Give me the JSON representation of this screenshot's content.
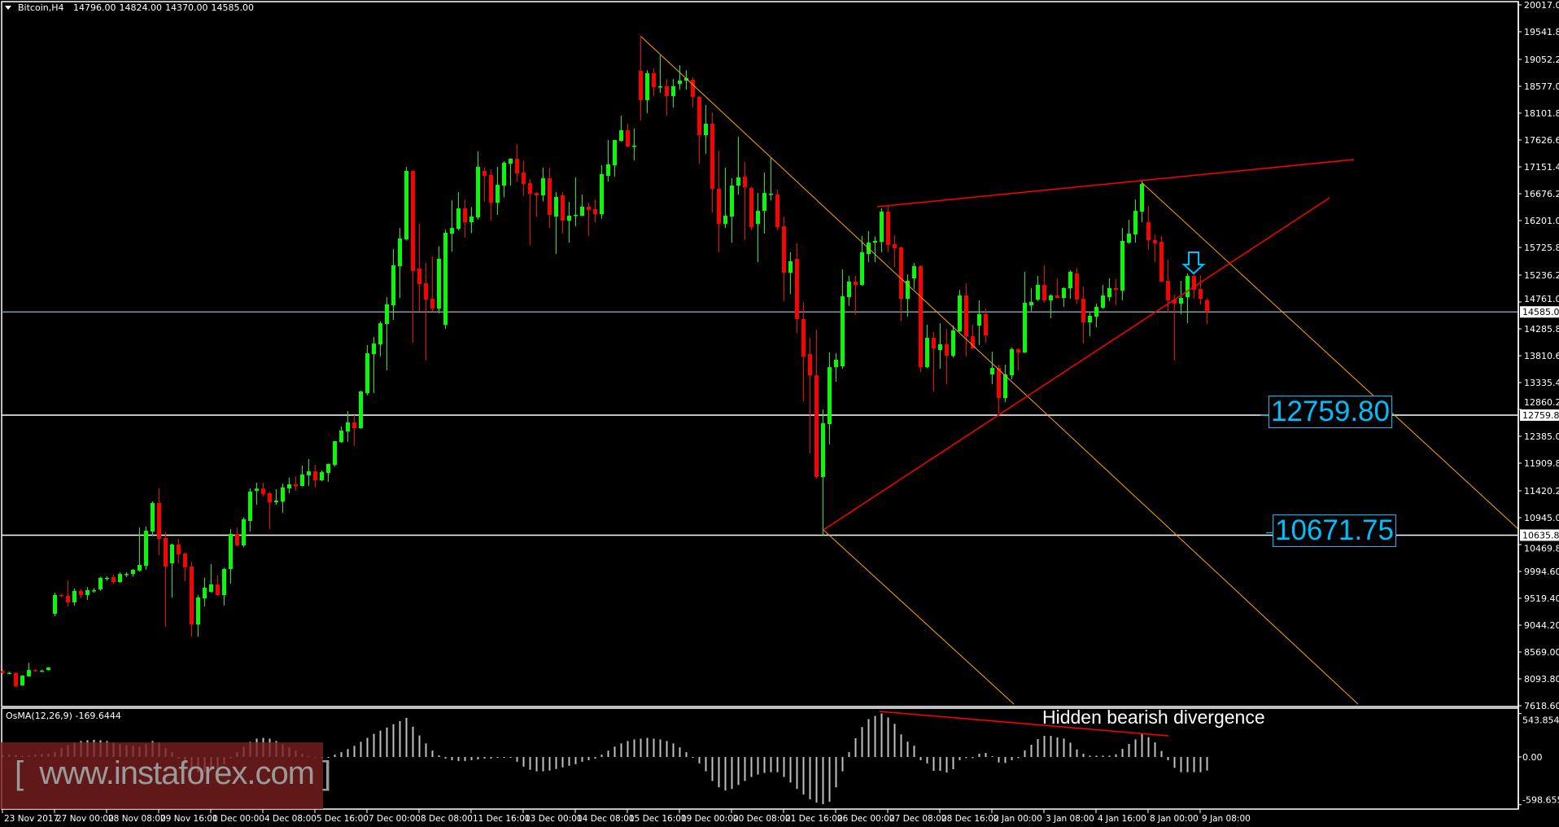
{
  "header": {
    "symbol": "Bitcoin,H4",
    "open": "14796.00",
    "high": "14824.00",
    "low": "14370.00",
    "close": "14585.00"
  },
  "indicator": {
    "label": "OsMA(12,26,9) -169.6444",
    "axis_labels": [
      "543.8546",
      "0.00",
      "-598.6558"
    ],
    "axis_values": [
      543.8546,
      0,
      -598.6558
    ]
  },
  "annotations": {
    "level_1": "12759.80",
    "level_2": "10671.75",
    "divergence": "Hidden bearish divergence",
    "arrow_icon": "down-arrow-icon"
  },
  "watermark": "[  www.instaforex.com ]",
  "colors": {
    "bull": "#00ff00",
    "bear": "#ff0000",
    "trend_orange": "#ffa500",
    "trend_red": "#ff0000",
    "label": "#00bfff",
    "background": "#000000"
  },
  "chart_data": {
    "type": "candlestick",
    "title": "Bitcoin,H4",
    "ylim": [
      7618.6,
      20017.0
    ],
    "y_ticks": [
      "20017.00",
      "19541.80",
      "19052.20",
      "18577.00",
      "18101.80",
      "17626.60",
      "17151.40",
      "16676.20",
      "16201.00",
      "15725.80",
      "15236.20",
      "14761.00",
      "14285.80",
      "13810.60",
      "13335.40",
      "12860.20",
      "12385.00",
      "11909.80",
      "11420.20",
      "10945.00",
      "10469.80",
      "9994.60",
      "9519.40",
      "9044.20",
      "8569.00",
      "8093.80",
      "7618.60"
    ],
    "price_markers": [
      {
        "label": "14585.00",
        "value": 14585.0,
        "color": "#8a96a3"
      },
      {
        "label": "12759.80",
        "value": 12759.8,
        "color": "#ffffff"
      },
      {
        "label": "10635.86",
        "value": 10635.86,
        "color": "#ffffff"
      }
    ],
    "x_labels": [
      "23 Nov 2017",
      "27 Nov 00:00",
      "28 Nov 08:00",
      "29 Nov 16:00",
      "1 Dec 00:00",
      "4 Dec 08:00",
      "5 Dec 16:00",
      "7 Dec 00:00",
      "8 Dec 08:00",
      "11 Dec 16:00",
      "13 Dec 00:00",
      "14 Dec 08:00",
      "15 Dec 16:00",
      "19 Dec 00:00",
      "20 Dec 08:00",
      "21 Dec 16:00",
      "26 Dec 00:00",
      "27 Dec 08:00",
      "28 Dec 16:00",
      "2 Jan 00:00",
      "3 Jan 08:00",
      "4 Jan 16:00",
      "8 Jan 00:00",
      "9 Jan 08:00"
    ],
    "x_label_every": 8,
    "ohlc_order": [
      "open",
      "high",
      "low",
      "close"
    ],
    "candles": [
      [
        8230,
        8250,
        8180,
        8200
      ],
      [
        8200,
        8220,
        8180,
        8200
      ],
      [
        8200,
        8210,
        7940,
        7960
      ],
      [
        7980,
        8160,
        7970,
        8150
      ],
      [
        8140,
        8380,
        8130,
        8250
      ],
      [
        8250,
        8260,
        8220,
        8235
      ],
      [
        8235,
        8260,
        8220,
        8240
      ],
      [
        8250,
        8300,
        8240,
        8295
      ],
      [
        9246,
        9620,
        9200,
        9577
      ],
      [
        9577,
        9600,
        9540,
        9563
      ],
      [
        9563,
        9836,
        9375,
        9447
      ],
      [
        9447,
        9690,
        9390,
        9650
      ],
      [
        9650,
        9680,
        9520,
        9577
      ],
      [
        9577,
        9720,
        9490,
        9663
      ],
      [
        9663,
        9700,
        9620,
        9663
      ],
      [
        9678,
        9900,
        9650,
        9880
      ],
      [
        9880,
        9910,
        9830,
        9880
      ],
      [
        9894,
        9940,
        9770,
        9806
      ],
      [
        9806,
        9980,
        9790,
        9950
      ],
      [
        9950,
        9980,
        9900,
        9950
      ],
      [
        9950,
        10040,
        9900,
        10023
      ],
      [
        10010,
        10772,
        9990,
        10110
      ],
      [
        10096,
        10787,
        10023,
        10715
      ],
      [
        10700,
        11233,
        10628,
        11204
      ],
      [
        11204,
        11463,
        10282,
        10571
      ],
      [
        10585,
        10700,
        9015,
        10081
      ],
      [
        10139,
        10485,
        9534,
        10470
      ],
      [
        10470,
        10571,
        10139,
        10297
      ],
      [
        10311,
        10330,
        9822,
        10067
      ],
      [
        10081,
        10167,
        8843,
        9058
      ],
      [
        9058,
        9580,
        8843,
        9534
      ],
      [
        9519,
        9880,
        9375,
        9706
      ],
      [
        9634,
        10124,
        9620,
        9764
      ],
      [
        9764,
        9922,
        9560,
        9577
      ],
      [
        9577,
        10060,
        9390,
        10037
      ],
      [
        10037,
        10744,
        9779,
        10657
      ],
      [
        10657,
        10772,
        10440,
        10455
      ],
      [
        10455,
        10950,
        10420,
        10916
      ],
      [
        10887,
        11463,
        10700,
        11405
      ],
      [
        11420,
        11564,
        11175,
        11460
      ],
      [
        11460,
        11564,
        11320,
        11360
      ],
      [
        11377,
        11400,
        10743,
        11218
      ],
      [
        11218,
        11449,
        11175,
        11247
      ],
      [
        11230,
        11550,
        11031,
        11480
      ],
      [
        11463,
        11650,
        11377,
        11535
      ],
      [
        11535,
        11680,
        11420,
        11500
      ],
      [
        11506,
        11866,
        11500,
        11708
      ],
      [
        11694,
        11982,
        11506,
        11766
      ],
      [
        11766,
        11880,
        11478,
        11607
      ],
      [
        11607,
        11780,
        11590,
        11750
      ],
      [
        11737,
        11900,
        11578,
        11895
      ],
      [
        11880,
        12300,
        11850,
        12298
      ],
      [
        12284,
        12560,
        12270,
        12486
      ],
      [
        12470,
        12831,
        12290,
        12630
      ],
      [
        12630,
        12760,
        12212,
        12529
      ],
      [
        12529,
        13190,
        12520,
        13177
      ],
      [
        13148,
        13998,
        13110,
        13853
      ],
      [
        13839,
        14142,
        13150,
        14026
      ],
      [
        14012,
        14420,
        13796,
        14386
      ],
      [
        14372,
        14847,
        13551,
        14718
      ],
      [
        14703,
        15697,
        14444,
        15409
      ],
      [
        15394,
        16071,
        14833,
        15884
      ],
      [
        15870,
        17151,
        15850,
        17079
      ],
      [
        17079,
        17100,
        14041,
        15308
      ],
      [
        15351,
        16143,
        14600,
        15078
      ],
      [
        15092,
        15452,
        13724,
        14804
      ],
      [
        14818,
        15567,
        14600,
        14646
      ],
      [
        14646,
        15750,
        14560,
        15524
      ],
      [
        14358,
        16040,
        14286,
        15985
      ],
      [
        15970,
        16560,
        15653,
        16071
      ],
      [
        16057,
        16705,
        16030,
        16416
      ],
      [
        16416,
        16575,
        15898,
        16172
      ],
      [
        16172,
        16440,
        15980,
        16272
      ],
      [
        16258,
        17425,
        16220,
        17151
      ],
      [
        17079,
        17151,
        16532,
        16993
      ],
      [
        17007,
        17110,
        16200,
        16517
      ],
      [
        16517,
        17151,
        16300,
        16834
      ],
      [
        16820,
        17252,
        16610,
        17223
      ],
      [
        17209,
        17300,
        16820,
        17295
      ],
      [
        17295,
        17554,
        16890,
        17036
      ],
      [
        17050,
        17266,
        16634,
        16849
      ],
      [
        16863,
        16935,
        15769,
        16676
      ],
      [
        16690,
        16700,
        16260,
        16647
      ],
      [
        16647,
        17137,
        16540,
        16950
      ],
      [
        16950,
        17137,
        16070,
        16302
      ],
      [
        16273,
        16705,
        15610,
        16618
      ],
      [
        16647,
        16705,
        15970,
        16200
      ],
      [
        16200,
        16532,
        15812,
        16287
      ],
      [
        16287,
        16964,
        16100,
        16302
      ],
      [
        16287,
        16662,
        16280,
        16446
      ],
      [
        16446,
        16518,
        15927,
        16388
      ],
      [
        16403,
        16575,
        16170,
        16316
      ],
      [
        16316,
        17180,
        16230,
        17022
      ],
      [
        16993,
        17626,
        16892,
        17194
      ],
      [
        17180,
        17626,
        16978,
        17626
      ],
      [
        17612,
        18058,
        17600,
        17799
      ],
      [
        17799,
        17914,
        17497,
        17511
      ],
      [
        17525,
        17828,
        17266,
        17525
      ],
      [
        18850,
        19469,
        17972,
        18332
      ],
      [
        18332,
        18864,
        18100,
        18807
      ],
      [
        18807,
        18893,
        18400,
        18562
      ],
      [
        18577,
        19124,
        18462,
        18577
      ],
      [
        18577,
        18706,
        18059,
        18404
      ],
      [
        18404,
        18706,
        18202,
        18577
      ],
      [
        18620,
        18950,
        18520,
        18677
      ],
      [
        18677,
        18864,
        18520,
        18720
      ],
      [
        18692,
        18735,
        18202,
        18390
      ],
      [
        18390,
        18400,
        17209,
        17713
      ],
      [
        17713,
        18246,
        17382,
        17914
      ],
      [
        17914,
        18116,
        16345,
        16762
      ],
      [
        16762,
        17440,
        15640,
        16143
      ],
      [
        16143,
        17137,
        16070,
        16287
      ],
      [
        16273,
        16950,
        15812,
        16820
      ],
      [
        16820,
        17684,
        16660,
        16964
      ],
      [
        16978,
        17238,
        15855,
        16791
      ],
      [
        16777,
        16800,
        16028,
        16085
      ],
      [
        16143,
        16690,
        15466,
        16374
      ],
      [
        16374,
        17050,
        15970,
        16690
      ],
      [
        16676,
        17324,
        16560,
        16676
      ],
      [
        16661,
        16748,
        16028,
        16085
      ],
      [
        16100,
        16273,
        14775,
        15279
      ],
      [
        15279,
        15639,
        14904,
        15481
      ],
      [
        15524,
        15797,
        14213,
        14459
      ],
      [
        14459,
        14760,
        13004,
        13796
      ],
      [
        13839,
        14127,
        12082,
        13464
      ],
      [
        13464,
        14271,
        11640,
        11665
      ],
      [
        11665,
        12860,
        10636,
        12615
      ],
      [
        12601,
        13868,
        12240,
        13608
      ],
      [
        13608,
        13854,
        13350,
        13738
      ],
      [
        13623,
        15337,
        13580,
        14861
      ],
      [
        14847,
        15222,
        14690,
        15121
      ],
      [
        15121,
        15222,
        14530,
        15063
      ],
      [
        15063,
        15927,
        15050,
        15639
      ],
      [
        15610,
        16014,
        15466,
        15812
      ],
      [
        15812,
        15920,
        15466,
        15841
      ],
      [
        15826,
        16417,
        15640,
        16359
      ],
      [
        16359,
        16460,
        15640,
        15769
      ],
      [
        15783,
        15941,
        15380,
        15711
      ],
      [
        15725,
        15740,
        14416,
        14818
      ],
      [
        14818,
        15250,
        14502,
        15135
      ],
      [
        15179,
        15452,
        14990,
        15394
      ],
      [
        15394,
        15410,
        13522,
        13609
      ],
      [
        13609,
        14357,
        13594,
        14127
      ],
      [
        14127,
        14228,
        13177,
        13940
      ],
      [
        13911,
        14386,
        13580,
        14012
      ],
      [
        14012,
        14286,
        13306,
        13810
      ],
      [
        13810,
        14343,
        13781,
        14257
      ],
      [
        14242,
        14976,
        14230,
        14876
      ],
      [
        14876,
        15092,
        13796,
        14156
      ],
      [
        14156,
        14357,
        13940,
        13940
      ],
      [
        14343,
        14790,
        14000,
        14545
      ],
      [
        14545,
        14645,
        14040,
        14170
      ],
      [
        13479,
        13882,
        13306,
        13594
      ],
      [
        13594,
        13652,
        12788,
        13062
      ],
      [
        13062,
        13652,
        12990,
        13479
      ],
      [
        13465,
        13954,
        13393,
        13925
      ],
      [
        13925,
        13940,
        13551,
        13868
      ],
      [
        13868,
        15294,
        13860,
        14746
      ],
      [
        14703,
        15006,
        14600,
        14761
      ],
      [
        14804,
        15222,
        14774,
        15063
      ],
      [
        15063,
        15409,
        14746,
        14790
      ],
      [
        14790,
        14900,
        14473,
        14876
      ],
      [
        14876,
        15178,
        14830,
        14833
      ],
      [
        14833,
        15020,
        14674,
        15006
      ],
      [
        15006,
        15322,
        14818,
        15293
      ],
      [
        15265,
        15366,
        14732,
        14804
      ],
      [
        14818,
        15034,
        14026,
        14401
      ],
      [
        14401,
        14588,
        14156,
        14516
      ],
      [
        14502,
        14732,
        14314,
        14675
      ],
      [
        14660,
        15063,
        14640,
        14876
      ],
      [
        14847,
        15178,
        14775,
        15006
      ],
      [
        15006,
        15164,
        14703,
        14977
      ],
      [
        14962,
        16071,
        14790,
        15841
      ],
      [
        15812,
        16215,
        15790,
        15970
      ],
      [
        15956,
        16575,
        15812,
        16374
      ],
      [
        16359,
        16921,
        16172,
        16849
      ],
      [
        16172,
        16460,
        15682,
        15855
      ],
      [
        15855,
        15957,
        15466,
        15797
      ],
      [
        15826,
        15927,
        15120,
        15120
      ],
      [
        15135,
        15509,
        14573,
        14790
      ],
      [
        14804,
        14890,
        13724,
        14732
      ],
      [
        14732,
        15135,
        14545,
        14833
      ],
      [
        14847,
        15265,
        14386,
        15221
      ],
      [
        15221,
        15279,
        14818,
        14977
      ],
      [
        14991,
        15236,
        14718,
        14818
      ],
      [
        14796,
        14824,
        14370,
        14585
      ]
    ],
    "osma": [
      20,
      30,
      25,
      15,
      20,
      30,
      35,
      40,
      60,
      110,
      150,
      180,
      200,
      210,
      215,
      210,
      200,
      180,
      160,
      150,
      140,
      130,
      160,
      200,
      180,
      110,
      60,
      -20,
      -80,
      -160,
      -190,
      -190,
      -170,
      -150,
      -90,
      -20,
      60,
      130,
      190,
      230,
      240,
      230,
      200,
      160,
      120,
      80,
      40,
      10,
      -10,
      -20,
      -10,
      30,
      60,
      100,
      140,
      190,
      240,
      290,
      330,
      370,
      410,
      450,
      490,
      380,
      270,
      170,
      80,
      20,
      -20,
      -40,
      -50,
      -50,
      -40,
      -30,
      -20,
      -20,
      -10,
      -10,
      -5,
      -60,
      -120,
      -160,
      -180,
      -180,
      -170,
      -150,
      -130,
      -110,
      -90,
      -60,
      -40,
      -20,
      30,
      80,
      130,
      170,
      200,
      220,
      230,
      240,
      230,
      220,
      200,
      170,
      120,
      60,
      -10,
      -80,
      -180,
      -300,
      -380,
      -420,
      -400,
      -350,
      -300,
      -250,
      -220,
      -200,
      -190,
      -190,
      -250,
      -320,
      -400,
      -470,
      -530,
      -570,
      -590,
      -560,
      -380,
      -180,
      60,
      235,
      375,
      475,
      515,
      545,
      495,
      415,
      283,
      192,
      141,
      -40,
      -80,
      -173,
      -173,
      -194,
      -153,
      -40,
      -14,
      -14,
      40,
      51,
      10,
      -68,
      -75,
      -40,
      -14,
      82,
      153,
      224,
      265,
      265,
      245,
      231,
      180,
      95,
      40,
      17,
      17,
      17,
      17,
      34,
      102,
      163,
      221,
      296,
      248,
      184,
      75,
      -40,
      -136,
      -190,
      -190,
      -190,
      -190,
      -169.6444
    ]
  }
}
